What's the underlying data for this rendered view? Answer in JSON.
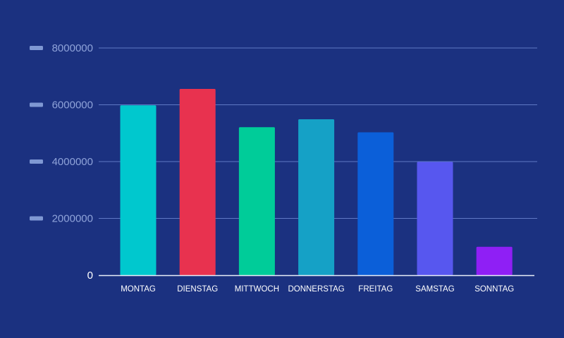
{
  "chart_data": {
    "type": "bar",
    "categories": [
      "MONTAG",
      "DIENSTAG",
      "MITTWOCH",
      "DONNERSTAG",
      "FREITAG",
      "SAMSTAG",
      "SONNTAG"
    ],
    "values": [
      5980000,
      6560000,
      5210000,
      5490000,
      5030000,
      3990000,
      1000000
    ],
    "colors": [
      "#00c8ce",
      "#e8324f",
      "#00cc99",
      "#15a1c6",
      "#0b5fd9",
      "#5757ef",
      "#8f1ff5"
    ],
    "y_ticks": [
      "0",
      "2000000",
      "4000000",
      "6000000",
      "8000000"
    ],
    "ylim": [
      0,
      8000000
    ],
    "grid": true,
    "gridline_color": "#5f79c5",
    "tick_label_color": "#8fa3d9",
    "background": "#1b3180"
  }
}
